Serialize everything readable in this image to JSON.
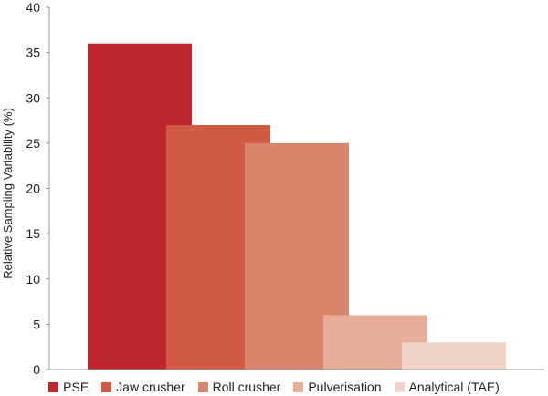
{
  "chart_data": {
    "type": "bar",
    "categories": [
      "PSE",
      "Jaw crusher",
      "Roll crusher",
      "Pulverisation",
      "Analytical (TAE)"
    ],
    "values": [
      36,
      27,
      25,
      6,
      3
    ],
    "colors": [
      "#c0272d",
      "#d05a42",
      "#d9856b",
      "#e8ad98",
      "#f2d3c8"
    ],
    "title": "",
    "xlabel": "",
    "ylabel": "Relative Sampling Variability (%)",
    "ylim": [
      0,
      40
    ],
    "yticks": [
      "0",
      "5",
      "10",
      "15",
      "20",
      "25",
      "30",
      "35",
      "40"
    ],
    "grid": false,
    "legend_position": "bottom"
  }
}
